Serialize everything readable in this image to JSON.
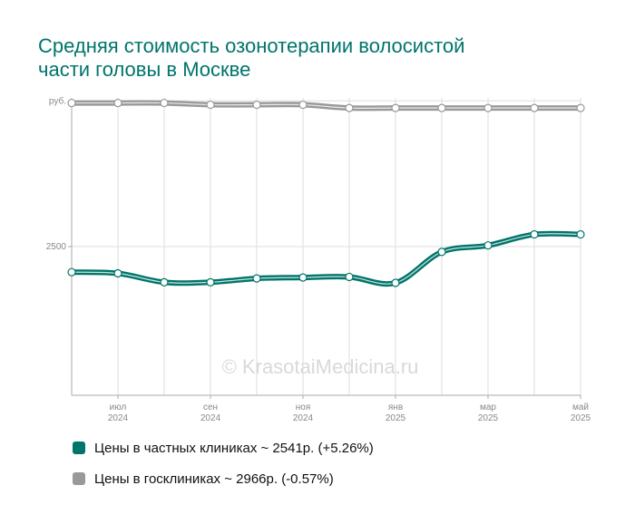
{
  "title_lines": [
    "Средняя стоимость озонотерапии волосистой",
    "части головы в Москве"
  ],
  "watermark": "© KrasotaiMedicina.ru",
  "legend": [
    {
      "text": "Цены в частных клиниках ~ 2541р. (+5.26%)",
      "color": "#00756a"
    },
    {
      "text": "Цены в госклиниках ~ 2966р. (-0.57%)",
      "color": "#999999"
    }
  ],
  "chart_data": {
    "type": "line",
    "ylim": [
      2000,
      3000
    ],
    "y_ticks": [
      {
        "value": 2990,
        "label": "руб."
      },
      {
        "value": 2500,
        "label": "2500"
      }
    ],
    "x_ticks": [
      {
        "index": 1,
        "month": "июл",
        "year": "2024"
      },
      {
        "index": 3,
        "month": "сен",
        "year": "2024"
      },
      {
        "index": 5,
        "month": "ноя",
        "year": "2024"
      },
      {
        "index": 7,
        "month": "янв",
        "year": "2025"
      },
      {
        "index": 9,
        "month": "мар",
        "year": "2025"
      },
      {
        "index": 11,
        "month": "май",
        "year": "2025"
      }
    ],
    "x": [
      "2024-06",
      "2024-07",
      "2024-08",
      "2024-09",
      "2024-10",
      "2024-11",
      "2024-12",
      "2025-01",
      "2025-02",
      "2025-03",
      "2025-04",
      "2025-05"
    ],
    "series": [
      {
        "name": "Цены в частных клиниках",
        "color": "#00756a",
        "values": [
          2414,
          2410,
          2380,
          2380,
          2393,
          2396,
          2398,
          2378,
          2482,
          2504,
          2541,
          2541
        ]
      },
      {
        "name": "Цены в госклиниках",
        "color": "#999999",
        "values": [
          2983,
          2983,
          2983,
          2977,
          2977,
          2977,
          2966,
          2966,
          2966,
          2966,
          2966,
          2966
        ]
      }
    ]
  }
}
